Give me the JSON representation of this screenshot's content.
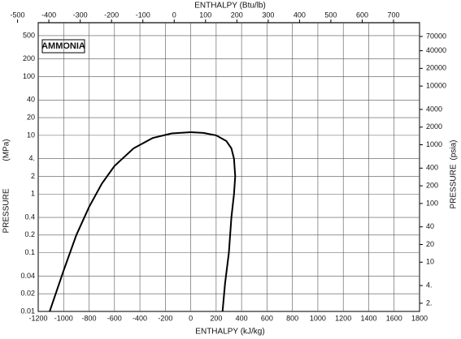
{
  "chart_data": {
    "type": "ph-diagram",
    "title": "AMMONIA",
    "x_label": "ENTHALPY (kJ/kg)",
    "x2_label": "ENTHALPY (Btu/lb)",
    "y_label": "PRESSURE",
    "y_unit": "(MPa)",
    "y2_label": "PRESSURE",
    "y2_unit": "(psia)",
    "xlim": [
      -1200,
      1800
    ],
    "xticks": [
      -1200,
      -1000,
      -800,
      -600,
      -400,
      -200,
      0,
      200,
      400,
      600,
      800,
      1000,
      1200,
      1400,
      1600,
      1800
    ],
    "x2lim": [
      -434,
      783
    ],
    "x2ticks": [
      -500,
      -400,
      -300,
      -200,
      -100,
      0,
      100,
      200,
      300,
      400,
      500,
      600,
      700
    ],
    "ylim": [
      0.01,
      830
    ],
    "log_y": true,
    "yticks": [
      500,
      200,
      100,
      40,
      20,
      10,
      {
        "value": 4,
        "label": "4."
      },
      2,
      1,
      0.4,
      0.2,
      0.1,
      0.04,
      0.02,
      0.01
    ],
    "y2lim": [
      1.45,
      120000
    ],
    "y2ticks": [
      70000,
      40000,
      20000,
      10000,
      4000,
      2000,
      1000,
      400,
      200,
      100,
      40,
      20,
      10,
      {
        "value": 4,
        "label": "4."
      },
      {
        "value": 2,
        "label": "2."
      }
    ],
    "grid": true,
    "series": [
      {
        "color": "#000000",
        "x": [
          -1110,
          -1000,
          -900,
          -800,
          -700,
          -600,
          -450,
          -300,
          -150,
          0
        ],
        "values": [
          0.01,
          0.05,
          0.2,
          0.6,
          1.5,
          3,
          6,
          9,
          10.8,
          11.3
        ]
      },
      {
        "color": "#000000",
        "x": [
          0,
          100,
          200,
          280,
          320,
          340,
          350,
          340,
          320,
          300,
          270,
          250
        ],
        "values": [
          11.3,
          11,
          10,
          8,
          6,
          4,
          2,
          1,
          0.4,
          0.1,
          0.03,
          0.01
        ]
      }
    ]
  }
}
